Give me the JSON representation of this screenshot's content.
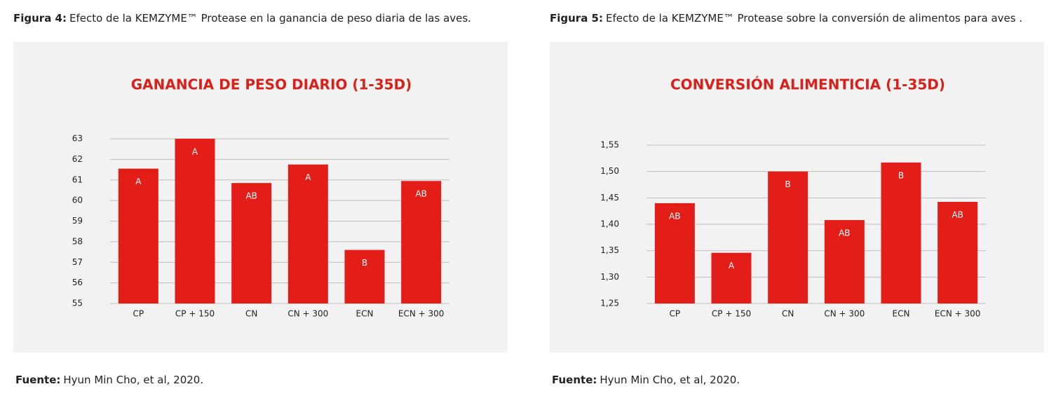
{
  "chart_data": [
    {
      "type": "bar",
      "caption_label": "Figura 4:",
      "caption": "Efecto de la KEMZYME™ Protease en la ganancia de peso diaria de las aves.",
      "title": "GANANCIA DE PESO DIARIO (1-35D)",
      "categories": [
        "CP",
        "CP + 150",
        "CN",
        "CN + 300",
        "ECN",
        "ECN + 300"
      ],
      "values": [
        61.55,
        63.0,
        60.85,
        61.75,
        57.6,
        60.95
      ],
      "annotations": [
        "A",
        "A",
        "AB",
        "A",
        "B",
        "AB"
      ],
      "color": "#e31e18",
      "ylim": [
        55,
        63
      ],
      "yticks": [
        55,
        56,
        57,
        58,
        59,
        60,
        61,
        62,
        63
      ],
      "grid": true,
      "source_label": "Fuente:",
      "source": "Hyun Min Cho, et al, 2020."
    },
    {
      "type": "bar",
      "caption_label": "Figura 5:",
      "caption": "Efecto de la KEMZYME™ Protease sobre la conversión de alimentos para aves .",
      "title": "CONVERSIÓN ALIMENTICIA (1-35D)",
      "categories": [
        "CP",
        "CP + 150",
        "CN",
        "CN + 300",
        "ECN",
        "ECN + 300"
      ],
      "values": [
        1.44,
        1.346,
        1.5,
        1.408,
        1.517,
        1.4425
      ],
      "annotations": [
        "AB",
        "A",
        "B",
        "AB",
        "B",
        "AB"
      ],
      "color": "#e31e18",
      "ylim": [
        1.25,
        1.55
      ],
      "yticks": [
        {
          "value": 1.25,
          "label": "1,25"
        },
        {
          "value": 1.3,
          "label": "1,30"
        },
        {
          "value": 1.35,
          "label": "1,35"
        },
        {
          "value": 1.4,
          "label": "1,40"
        },
        {
          "value": 1.45,
          "label": "1,45"
        },
        {
          "value": 1.5,
          "label": "1,50"
        },
        {
          "value": 1.55,
          "label": "1,55"
        }
      ],
      "grid": true,
      "source_label": "Fuente:",
      "source": "Hyun Min Cho, et al, 2020."
    }
  ]
}
